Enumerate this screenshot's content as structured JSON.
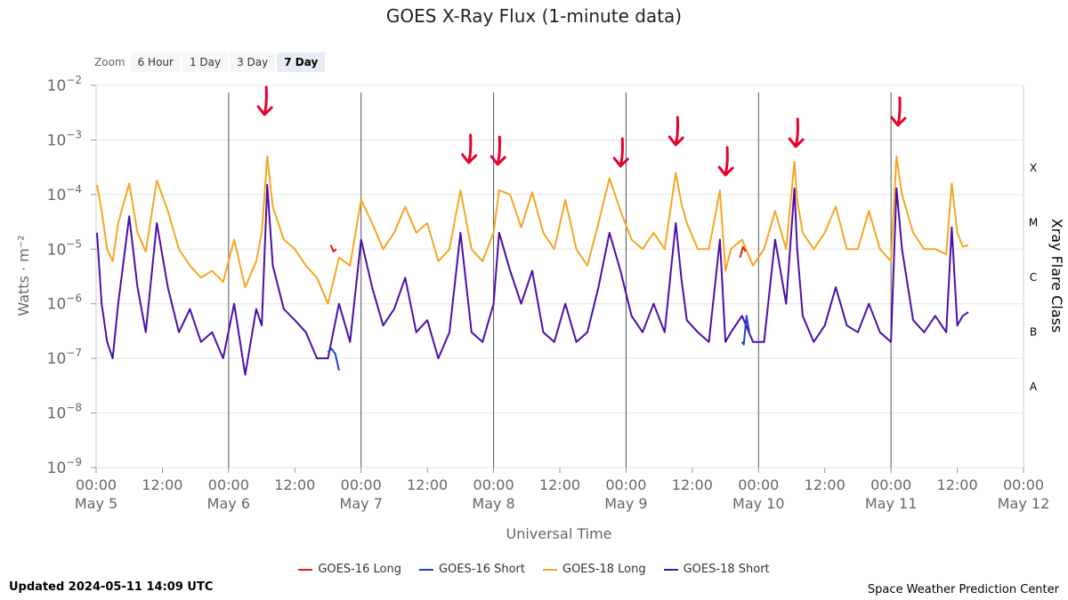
{
  "title": "GOES X-Ray Flux (1-minute data)",
  "zoom": {
    "label": "Zoom",
    "buttons": [
      {
        "label": "6 Hour",
        "active": false
      },
      {
        "label": "1 Day",
        "active": false
      },
      {
        "label": "3 Day",
        "active": false
      },
      {
        "label": "7 Day",
        "active": true
      }
    ]
  },
  "footer": {
    "updated": "Updated 2024-05-11 14:09 UTC",
    "credit": "Space Weather Prediction Center"
  },
  "colors": {
    "goes16_long": "#e0201b",
    "goes16_short": "#1f3fd6",
    "goes18_long": "#f5a623",
    "goes18_short": "#4b0fa8",
    "arrow": "#e8002a",
    "grid": "#e6e6e6",
    "day_line": "#555555"
  },
  "chart_data": {
    "type": "line",
    "title": "GOES X-Ray Flux (1-minute data)",
    "xlabel": "Universal Time",
    "ylabel": "Watts · m⁻²",
    "y2label": "Xray Flare Class",
    "y_scale": "log",
    "ylim": [
      1e-09,
      0.01
    ],
    "y_ticks": [
      {
        "base": "10",
        "exp": "−2"
      },
      {
        "base": "10",
        "exp": "−3"
      },
      {
        "base": "10",
        "exp": "−4"
      },
      {
        "base": "10",
        "exp": "−5"
      },
      {
        "base": "10",
        "exp": "−6"
      },
      {
        "base": "10",
        "exp": "−7"
      },
      {
        "base": "10",
        "exp": "−8"
      },
      {
        "base": "10",
        "exp": "−9"
      }
    ],
    "flare_classes": [
      "X",
      "M",
      "C",
      "B",
      "A"
    ],
    "xlim": [
      "2024-05-05 00:00",
      "2024-05-12 00:00"
    ],
    "x_ticks": [
      {
        "time": "00:00",
        "date": "May 5"
      },
      {
        "time": "12:00",
        "date": ""
      },
      {
        "time": "00:00",
        "date": "May 6"
      },
      {
        "time": "12:00",
        "date": ""
      },
      {
        "time": "00:00",
        "date": "May 7"
      },
      {
        "time": "12:00",
        "date": ""
      },
      {
        "time": "00:00",
        "date": "May 8"
      },
      {
        "time": "12:00",
        "date": ""
      },
      {
        "time": "00:00",
        "date": "May 9"
      },
      {
        "time": "12:00",
        "date": ""
      },
      {
        "time": "00:00",
        "date": "May 10"
      },
      {
        "time": "12:00",
        "date": ""
      },
      {
        "time": "00:00",
        "date": "May 11"
      },
      {
        "time": "12:00",
        "date": ""
      },
      {
        "time": "00:00",
        "date": "May 12"
      }
    ],
    "legend_position": "bottom",
    "series": [
      {
        "name": "GOES-16 Long",
        "key": "g16long",
        "x": [
          "2024-05-06 18:30",
          "2024-05-06 19:00",
          "2024-05-06 19:30",
          "2024-05-09 20:40",
          "2024-05-09 21:10",
          "2024-05-09 21:40"
        ],
        "y": [
          1.2e-05,
          9e-06,
          1e-05,
          7e-06,
          1.1e-05,
          9e-06
        ]
      },
      {
        "name": "GOES-16 Short",
        "key": "g16short",
        "x": [
          "2024-05-06 18:00",
          "2024-05-06 18:40",
          "2024-05-06 19:20",
          "2024-05-06 20:00",
          "2024-05-09 21:00",
          "2024-05-09 21:20",
          "2024-05-09 21:50",
          "2024-05-09 22:20"
        ],
        "y": [
          1.3e-07,
          1.5e-07,
          1.2e-07,
          6e-08,
          2e-07,
          1.8e-07,
          6e-07,
          3e-07
        ]
      },
      {
        "name": "GOES-18 Long",
        "key": "g18long",
        "x": [
          "2024-05-05 00:10",
          "2024-05-05 01:00",
          "2024-05-05 02:00",
          "2024-05-05 03:00",
          "2024-05-05 04:00",
          "2024-05-05 06:00",
          "2024-05-05 07:30",
          "2024-05-05 09:00",
          "2024-05-05 11:00",
          "2024-05-05 13:00",
          "2024-05-05 15:00",
          "2024-05-05 17:00",
          "2024-05-05 19:00",
          "2024-05-05 21:00",
          "2024-05-05 23:00",
          "2024-05-06 01:00",
          "2024-05-06 03:00",
          "2024-05-06 05:00",
          "2024-05-06 06:00",
          "2024-05-06 07:00",
          "2024-05-06 08:00",
          "2024-05-06 10:00",
          "2024-05-06 12:00",
          "2024-05-06 14:00",
          "2024-05-06 16:00",
          "2024-05-06 18:00",
          "2024-05-06 20:00",
          "2024-05-06 22:00",
          "2024-05-07 00:00",
          "2024-05-07 02:00",
          "2024-05-07 04:00",
          "2024-05-07 06:00",
          "2024-05-07 08:00",
          "2024-05-07 10:00",
          "2024-05-07 12:00",
          "2024-05-07 14:00",
          "2024-05-07 16:00",
          "2024-05-07 18:00",
          "2024-05-07 20:00",
          "2024-05-07 22:00",
          "2024-05-08 00:00",
          "2024-05-08 01:00",
          "2024-05-08 03:00",
          "2024-05-08 05:00",
          "2024-05-08 07:00",
          "2024-05-08 09:00",
          "2024-05-08 11:00",
          "2024-05-08 13:00",
          "2024-05-08 15:00",
          "2024-05-08 17:00",
          "2024-05-08 19:00",
          "2024-05-08 21:00",
          "2024-05-08 23:00",
          "2024-05-09 01:00",
          "2024-05-09 03:00",
          "2024-05-09 05:00",
          "2024-05-09 07:00",
          "2024-05-09 09:00",
          "2024-05-09 10:00",
          "2024-05-09 11:00",
          "2024-05-09 13:00",
          "2024-05-09 15:00",
          "2024-05-09 17:00",
          "2024-05-09 18:00",
          "2024-05-09 19:00",
          "2024-05-09 21:00",
          "2024-05-09 23:00",
          "2024-05-10 01:00",
          "2024-05-10 03:00",
          "2024-05-10 05:00",
          "2024-05-10 06:30",
          "2024-05-10 07:00",
          "2024-05-10 08:00",
          "2024-05-10 10:00",
          "2024-05-10 12:00",
          "2024-05-10 14:00",
          "2024-05-10 16:00",
          "2024-05-10 18:00",
          "2024-05-10 20:00",
          "2024-05-10 22:00",
          "2024-05-11 00:00",
          "2024-05-11 01:00",
          "2024-05-11 02:00",
          "2024-05-11 04:00",
          "2024-05-11 06:00",
          "2024-05-11 08:00",
          "2024-05-11 10:00",
          "2024-05-11 11:00",
          "2024-05-11 12:00",
          "2024-05-11 13:00",
          "2024-05-11 14:00"
        ],
        "y": [
          0.00015,
          5e-05,
          1e-05,
          6e-06,
          3e-05,
          0.00016,
          2e-05,
          9e-06,
          0.00018,
          5e-05,
          1e-05,
          5e-06,
          3e-06,
          4e-06,
          2.5e-06,
          1.5e-05,
          2e-06,
          6e-06,
          2e-05,
          0.0005,
          6e-05,
          1.5e-05,
          1e-05,
          5e-06,
          3e-06,
          1e-06,
          7e-06,
          5e-06,
          8e-05,
          3e-05,
          1e-05,
          2e-05,
          6e-05,
          2e-05,
          3e-05,
          6e-06,
          1e-05,
          0.00012,
          1e-05,
          6e-06,
          2e-05,
          0.00012,
          0.0001,
          2.5e-05,
          0.00011,
          2e-05,
          1e-05,
          8e-05,
          1e-05,
          5e-06,
          3e-05,
          0.0002,
          5e-05,
          1.5e-05,
          1e-05,
          2e-05,
          1e-05,
          0.00025,
          7e-05,
          3e-05,
          1e-05,
          1e-05,
          0.00012,
          4e-06,
          1e-05,
          1.5e-05,
          5e-06,
          1e-05,
          5e-05,
          1e-05,
          0.0004,
          8e-05,
          2e-05,
          1e-05,
          2e-05,
          6e-05,
          1e-05,
          1e-05,
          5e-05,
          1e-05,
          6e-06,
          0.0005,
          0.0001,
          2e-05,
          1e-05,
          1e-05,
          8e-06,
          0.00016,
          2e-05,
          1.1e-05,
          1.2e-05
        ]
      },
      {
        "name": "GOES-18 Short",
        "key": "g18short",
        "x": [
          "2024-05-05 00:10",
          "2024-05-05 01:00",
          "2024-05-05 02:00",
          "2024-05-05 03:00",
          "2024-05-05 04:00",
          "2024-05-05 06:00",
          "2024-05-05 07:30",
          "2024-05-05 09:00",
          "2024-05-05 11:00",
          "2024-05-05 13:00",
          "2024-05-05 15:00",
          "2024-05-05 17:00",
          "2024-05-05 19:00",
          "2024-05-05 21:00",
          "2024-05-05 23:00",
          "2024-05-06 01:00",
          "2024-05-06 03:00",
          "2024-05-06 05:00",
          "2024-05-06 06:00",
          "2024-05-06 07:00",
          "2024-05-06 08:00",
          "2024-05-06 10:00",
          "2024-05-06 12:00",
          "2024-05-06 14:00",
          "2024-05-06 16:00",
          "2024-05-06 18:00",
          "2024-05-06 20:00",
          "2024-05-06 22:00",
          "2024-05-07 00:00",
          "2024-05-07 02:00",
          "2024-05-07 04:00",
          "2024-05-07 06:00",
          "2024-05-07 08:00",
          "2024-05-07 10:00",
          "2024-05-07 12:00",
          "2024-05-07 14:00",
          "2024-05-07 16:00",
          "2024-05-07 18:00",
          "2024-05-07 20:00",
          "2024-05-07 22:00",
          "2024-05-08 00:00",
          "2024-05-08 01:00",
          "2024-05-08 03:00",
          "2024-05-08 05:00",
          "2024-05-08 07:00",
          "2024-05-08 09:00",
          "2024-05-08 11:00",
          "2024-05-08 13:00",
          "2024-05-08 15:00",
          "2024-05-08 17:00",
          "2024-05-08 19:00",
          "2024-05-08 21:00",
          "2024-05-08 23:00",
          "2024-05-09 01:00",
          "2024-05-09 03:00",
          "2024-05-09 05:00",
          "2024-05-09 07:00",
          "2024-05-09 09:00",
          "2024-05-09 10:00",
          "2024-05-09 11:00",
          "2024-05-09 13:00",
          "2024-05-09 15:00",
          "2024-05-09 17:00",
          "2024-05-09 18:00",
          "2024-05-09 19:00",
          "2024-05-09 21:00",
          "2024-05-09 23:00",
          "2024-05-10 01:00",
          "2024-05-10 03:00",
          "2024-05-10 05:00",
          "2024-05-10 06:30",
          "2024-05-10 07:00",
          "2024-05-10 08:00",
          "2024-05-10 10:00",
          "2024-05-10 12:00",
          "2024-05-10 14:00",
          "2024-05-10 16:00",
          "2024-05-10 18:00",
          "2024-05-10 20:00",
          "2024-05-10 22:00",
          "2024-05-11 00:00",
          "2024-05-11 01:00",
          "2024-05-11 02:00",
          "2024-05-11 04:00",
          "2024-05-11 06:00",
          "2024-05-11 08:00",
          "2024-05-11 10:00",
          "2024-05-11 11:00",
          "2024-05-11 12:00",
          "2024-05-11 13:00",
          "2024-05-11 14:00"
        ],
        "y": [
          2e-05,
          1e-06,
          2e-07,
          1e-07,
          1e-06,
          4e-05,
          2e-06,
          3e-07,
          3e-05,
          2e-06,
          3e-07,
          8e-07,
          2e-07,
          3e-07,
          1e-07,
          1e-06,
          5e-08,
          8e-07,
          4e-07,
          0.00015,
          5e-06,
          8e-07,
          5e-07,
          3e-07,
          1e-07,
          1e-07,
          1e-06,
          2e-07,
          1.5e-05,
          2e-06,
          4e-07,
          8e-07,
          3e-06,
          3e-07,
          5e-07,
          1e-07,
          3e-07,
          2e-05,
          3e-07,
          2e-07,
          1e-06,
          2e-05,
          4e-06,
          1e-06,
          4e-06,
          3e-07,
          2e-07,
          1e-06,
          2e-07,
          3e-07,
          2e-06,
          2e-05,
          4e-06,
          6e-07,
          3e-07,
          1e-06,
          3e-07,
          3e-05,
          3e-06,
          5e-07,
          3e-07,
          2e-07,
          1.5e-05,
          2e-07,
          3e-07,
          6e-07,
          2e-07,
          2e-07,
          1.5e-05,
          1e-06,
          0.00013,
          1e-05,
          6e-07,
          2e-07,
          4e-07,
          2e-06,
          4e-07,
          3e-07,
          1e-06,
          3e-07,
          2e-07,
          0.00013,
          1e-05,
          5e-07,
          3e-07,
          6e-07,
          3e-07,
          2.5e-05,
          4e-07,
          6e-07,
          7e-07
        ]
      }
    ],
    "annotations": [
      {
        "type": "arrow",
        "x": "2024-05-06 06:30"
      },
      {
        "type": "arrow",
        "x": "2024-05-07 19:30"
      },
      {
        "type": "arrow",
        "x": "2024-05-08 00:45"
      },
      {
        "type": "arrow",
        "x": "2024-05-08 23:00"
      },
      {
        "type": "arrow",
        "x": "2024-05-09 09:00"
      },
      {
        "type": "arrow",
        "x": "2024-05-09 18:00"
      },
      {
        "type": "arrow",
        "x": "2024-05-10 06:45"
      },
      {
        "type": "arrow",
        "x": "2024-05-11 01:15"
      }
    ]
  }
}
